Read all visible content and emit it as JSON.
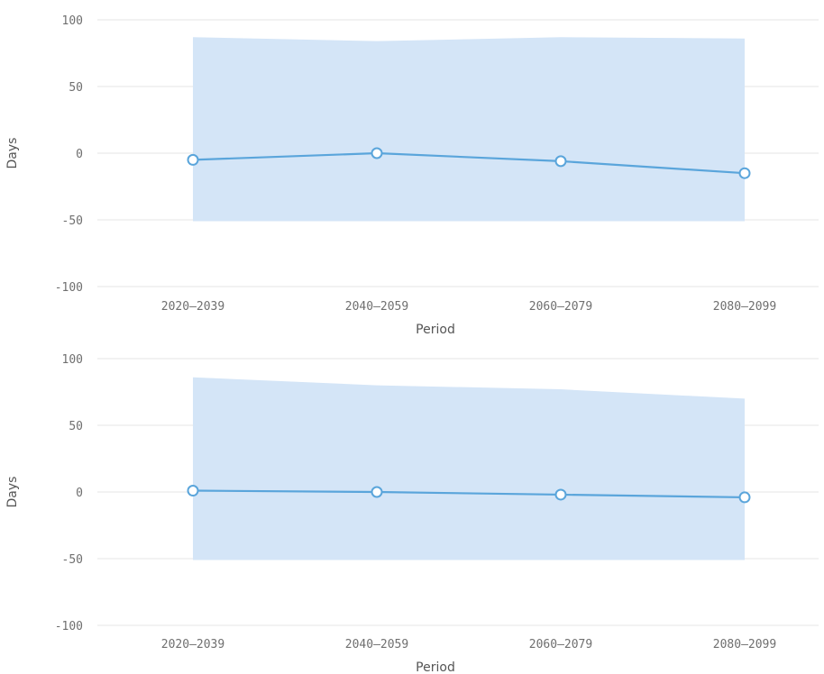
{
  "chart_data": [
    {
      "type": "line",
      "title": "",
      "xlabel": "Period",
      "ylabel": "Days",
      "categories": [
        "2020–2039",
        "2040–2059",
        "2060–2079",
        "2080–2099"
      ],
      "ylim": [
        -100,
        100
      ],
      "yticks": [
        100,
        50,
        0,
        -50,
        -100
      ],
      "series": [
        {
          "values": [
            -5,
            0,
            -6,
            -15
          ],
          "range_upper": [
            87,
            84,
            87,
            86
          ],
          "range_lower": [
            -51,
            -51,
            -51,
            -51
          ]
        }
      ],
      "grid": true,
      "legend": "none",
      "colors": {
        "line": "#5aa5db",
        "band": "#d4e5f7",
        "marker_fill": "#ffffff",
        "grid": "#e6e6e6"
      }
    },
    {
      "type": "line",
      "title": "",
      "xlabel": "Period",
      "ylabel": "Days",
      "categories": [
        "2020–2039",
        "2040–2059",
        "2060–2079",
        "2080–2099"
      ],
      "ylim": [
        -100,
        100
      ],
      "yticks": [
        100,
        50,
        0,
        -50,
        -100
      ],
      "series": [
        {
          "values": [
            1,
            0,
            -2,
            -4
          ],
          "range_upper": [
            86,
            80,
            77,
            70
          ],
          "range_lower": [
            -51,
            -51,
            -51,
            -51
          ]
        }
      ],
      "grid": true,
      "legend": "none",
      "colors": {
        "line": "#5aa5db",
        "band": "#d4e5f7",
        "marker_fill": "#ffffff",
        "grid": "#e6e6e6"
      }
    }
  ]
}
